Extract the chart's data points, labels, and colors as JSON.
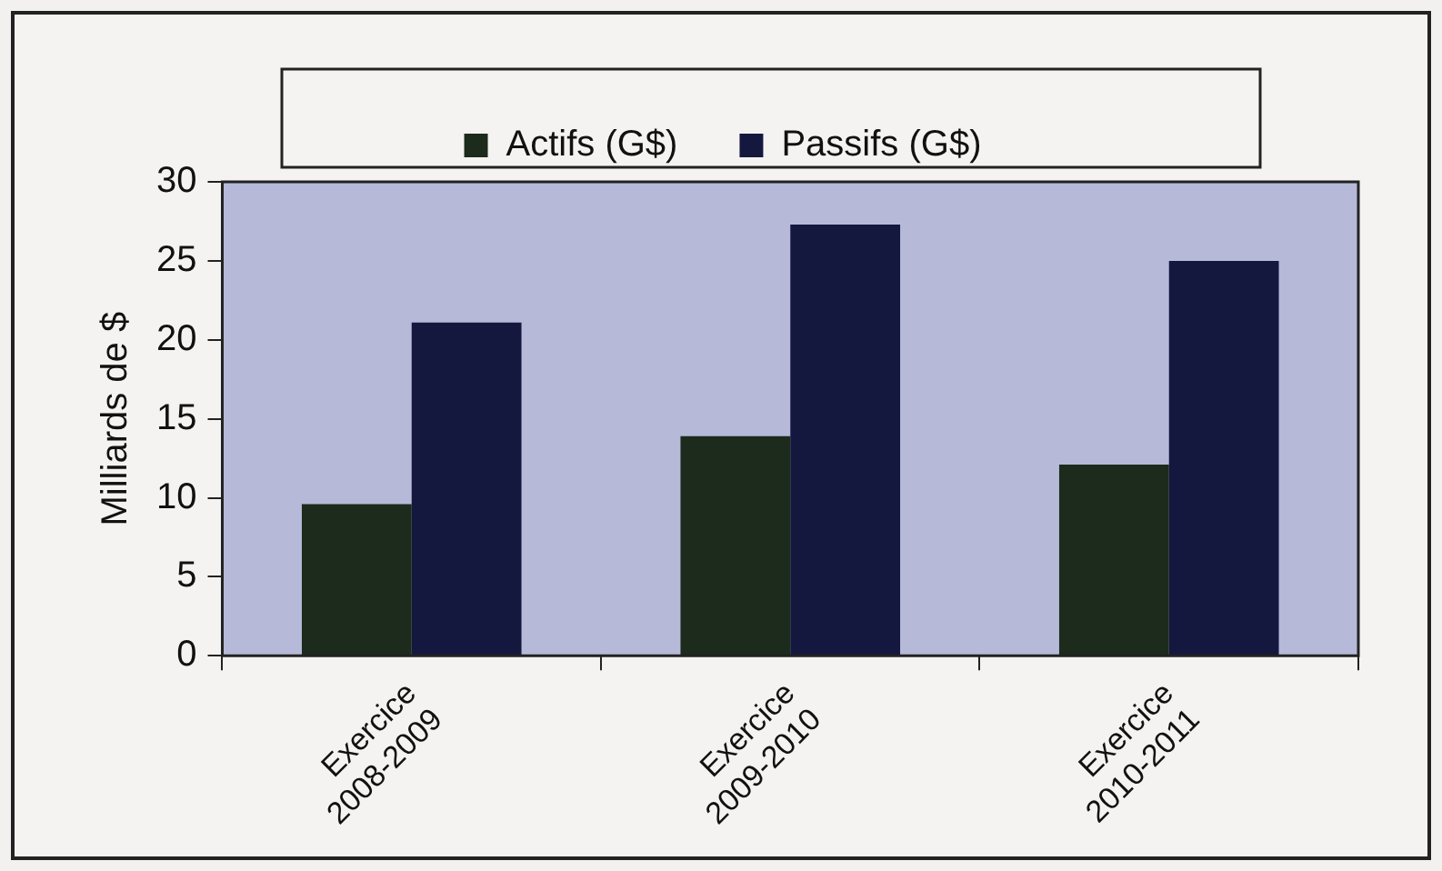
{
  "chart_data": {
    "type": "bar",
    "ylabel": "Milliards de $",
    "categories": [
      "Exercice 2008-2009",
      "Exercice 2009-2010",
      "Exercice 2010-2011"
    ],
    "series": [
      {
        "name": "Actifs (G$)",
        "color": "#1c2b1c",
        "values": [
          9.6,
          13.9,
          12.1
        ]
      },
      {
        "name": "Passifs (G$)",
        "color": "#14183f",
        "values": [
          21.1,
          27.3,
          25.0
        ]
      }
    ],
    "ylim": [
      0,
      30
    ],
    "yticks": [
      0,
      5,
      10,
      15,
      20,
      25,
      30
    ],
    "grid": false,
    "legend": "top"
  }
}
